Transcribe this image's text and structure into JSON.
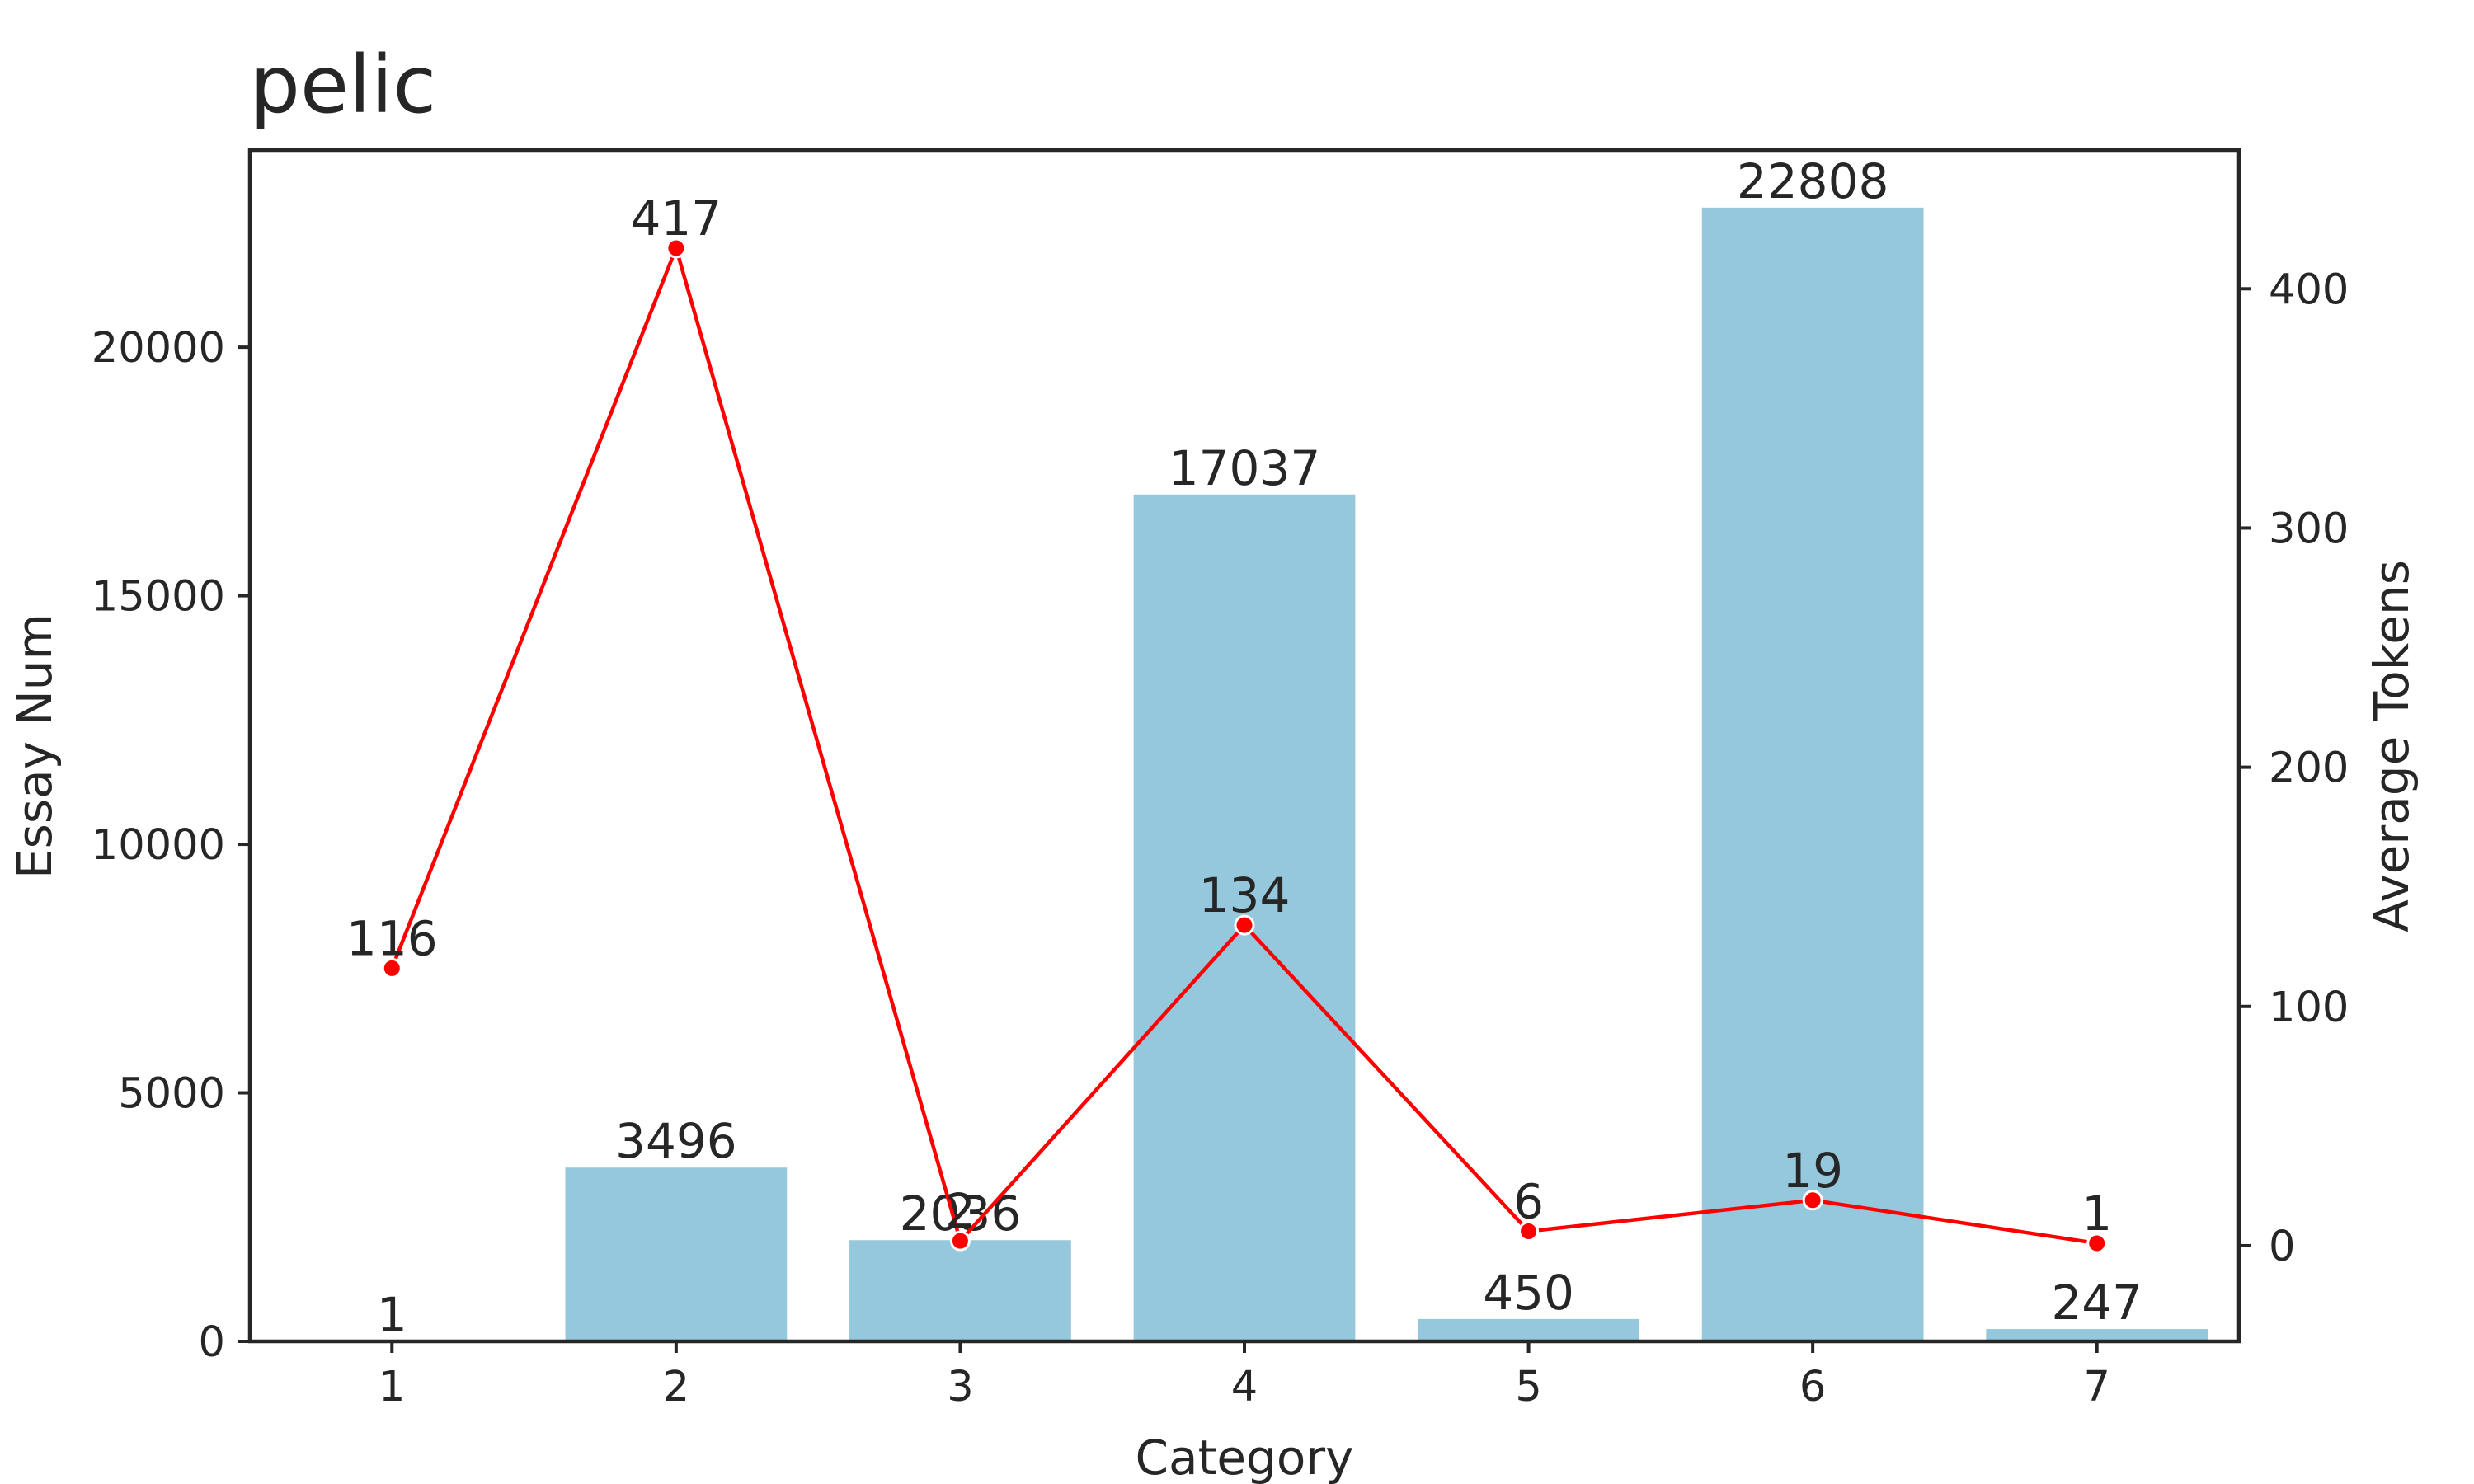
{
  "chart_data": {
    "type": "bar",
    "title": "pelic",
    "xlabel": "Category",
    "ylabel": "Essay Num",
    "y2label": "Average Tokens",
    "categories": [
      "1",
      "2",
      "3",
      "4",
      "5",
      "6",
      "7"
    ],
    "series": [
      {
        "type": "bar",
        "axis": "left",
        "values": [
          1,
          3496,
          2036,
          17037,
          450,
          22808,
          247
        ],
        "labels": [
          "1",
          "3496",
          "2036",
          "17037",
          "450",
          "22808",
          "247"
        ],
        "color": "#95C8DD"
      },
      {
        "type": "line",
        "axis": "right",
        "values": [
          116,
          417,
          2,
          134,
          6,
          19,
          1
        ],
        "labels": [
          "116",
          "417",
          "2",
          "134",
          "6",
          "19",
          "1"
        ],
        "color": "#FF0000",
        "marker": "circle"
      }
    ],
    "ylim": [
      0,
      23966
    ],
    "yticks": [
      0,
      5000,
      10000,
      15000,
      20000
    ],
    "ytick_labels": [
      "0",
      "5000",
      "10000",
      "15000",
      "20000"
    ],
    "y2lim": [
      -40,
      458
    ],
    "y2ticks": [
      0,
      100,
      200,
      300,
      400
    ],
    "y2tick_labels": [
      "0",
      "100",
      "200",
      "300",
      "400"
    ],
    "grid": false,
    "legend": "none"
  }
}
